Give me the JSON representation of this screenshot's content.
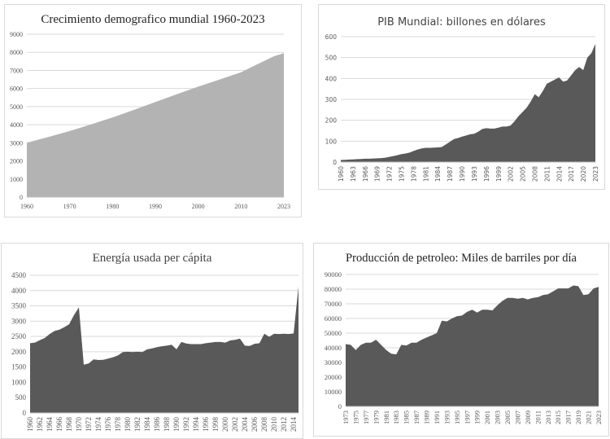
{
  "chart_data": [
    {
      "type": "area",
      "title": "Crecimiento demografico mundial 1960-2023",
      "x_tick_labels": [
        "1960",
        "1970",
        "1980",
        "1990",
        "2000",
        "2010",
        "2023"
      ],
      "x": [
        1960,
        1965,
        1970,
        1975,
        1980,
        1985,
        1990,
        1995,
        2000,
        2005,
        2010,
        2015,
        2020,
        2023
      ],
      "values": [
        3000,
        3320,
        3650,
        4020,
        4400,
        4820,
        5250,
        5680,
        6100,
        6500,
        6900,
        7350,
        7780,
        7950
      ],
      "y_ticks": [
        "0",
        "1000",
        "2000",
        "3000",
        "4000",
        "5000",
        "6000",
        "7000",
        "8000",
        "9000"
      ],
      "ylim": [
        0,
        9000
      ],
      "grid": true,
      "fill_color": "#b3b3b3"
    },
    {
      "type": "area",
      "title": "PIB Mundial: billones en dólares",
      "x_tick_labels": [
        "1960",
        "1963",
        "1966",
        "1969",
        "1972",
        "1975",
        "1978",
        "1981",
        "1984",
        "1987",
        "1990",
        "1993",
        "1996",
        "1999",
        "2002",
        "2005",
        "2008",
        "2011",
        "2014",
        "2017",
        "2020",
        "2023"
      ],
      "x_start": 1960,
      "values": [
        10,
        11,
        12,
        13,
        14,
        15,
        16,
        16,
        17,
        18,
        19,
        21,
        25,
        29,
        33,
        38,
        41,
        45,
        53,
        60,
        65,
        68,
        68,
        69,
        70,
        72,
        85,
        97,
        110,
        115,
        122,
        127,
        133,
        135,
        145,
        158,
        162,
        160,
        160,
        165,
        170,
        170,
        175,
        195,
        220,
        240,
        260,
        290,
        325,
        310,
        340,
        375,
        385,
        395,
        405,
        385,
        390,
        415,
        440,
        455,
        440,
        500,
        520,
        565
      ],
      "y_ticks": [
        "0",
        "100",
        "200",
        "300",
        "400",
        "500",
        "600"
      ],
      "ylim": [
        0,
        600
      ],
      "grid": true,
      "fill_color": "#595959"
    },
    {
      "type": "area",
      "title": "Energía usada per cápita",
      "x_tick_labels": [
        "1960",
        "1962",
        "1964",
        "1966",
        "1968",
        "1970",
        "1972",
        "1974",
        "1976",
        "1978",
        "1980",
        "1982",
        "1984",
        "1986",
        "1988",
        "1990",
        "1992",
        "1994",
        "1996",
        "1998",
        "2000",
        "2002",
        "2004",
        "2006",
        "2008",
        "2010",
        "2012",
        "2014"
      ],
      "x_start": 1960,
      "values": [
        2280,
        2300,
        2380,
        2450,
        2580,
        2680,
        2720,
        2800,
        2900,
        3200,
        3450,
        1580,
        1620,
        1750,
        1730,
        1740,
        1780,
        1820,
        1880,
        1990,
        2000,
        1990,
        2000,
        1990,
        2080,
        2110,
        2150,
        2180,
        2200,
        2230,
        2080,
        2320,
        2270,
        2250,
        2250,
        2250,
        2280,
        2300,
        2320,
        2320,
        2300,
        2370,
        2390,
        2430,
        2200,
        2190,
        2260,
        2280,
        2590,
        2490,
        2590,
        2580,
        2590,
        2580,
        2600,
        4130
      ],
      "y_ticks": [
        "0",
        "500",
        "1000",
        "1500",
        "2000",
        "2500",
        "3000",
        "3500",
        "4000",
        "4500"
      ],
      "ylim": [
        0,
        4500
      ],
      "grid": true,
      "fill_color": "#595959"
    },
    {
      "type": "area",
      "title": "Producción  de petroleo: Miles de barriles por día",
      "x_tick_labels": [
        "1973",
        "1975",
        "1977",
        "1979",
        "1981",
        "1983",
        "1985",
        "1987",
        "1989",
        "1991",
        "1993",
        "1995",
        "1997",
        "1999",
        "2001",
        "2003",
        "2005",
        "2007",
        "2009",
        "2011",
        "2013",
        "2015",
        "2017",
        "2019",
        "2021",
        "2023"
      ],
      "x_start": 1973,
      "values": [
        42500,
        42000,
        38500,
        42000,
        43500,
        43500,
        45500,
        42000,
        38500,
        36000,
        35500,
        42000,
        41500,
        43500,
        43500,
        45500,
        47000,
        48500,
        50000,
        58500,
        58000,
        60000,
        61500,
        62000,
        64500,
        66000,
        64000,
        66000,
        66000,
        65500,
        69000,
        72000,
        74000,
        74000,
        73500,
        74000,
        73000,
        74000,
        74500,
        76000,
        76500,
        78500,
        80500,
        80500,
        80500,
        82500,
        82000,
        76000,
        76500,
        80500,
        81500
      ],
      "y_ticks": [
        "0",
        "10000",
        "20000",
        "30000",
        "40000",
        "50000",
        "60000",
        "70000",
        "80000",
        "90000"
      ],
      "ylim": [
        0,
        90000
      ],
      "grid": true,
      "fill_color": "#595959"
    }
  ]
}
